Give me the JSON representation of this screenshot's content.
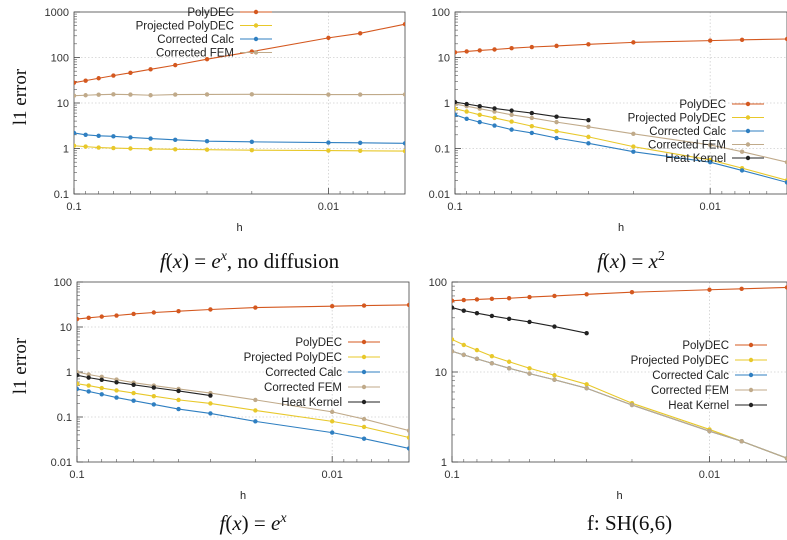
{
  "colors": {
    "PolyDEC": "#d4581f",
    "Projected PolyDEC": "#e8c82a",
    "Corrected Calc": "#2f7fc1",
    "Corrected FEM": "#c0aa8a",
    "Heat Kernel": "#222222"
  },
  "chart_data": [
    {
      "type": "line",
      "xscale": "log",
      "yscale": "log",
      "xreversed": true,
      "xlim": [
        0.1,
        0.005
      ],
      "ylim": [
        0.1,
        1000
      ],
      "x_ticks": [
        "0.1",
        "0.01"
      ],
      "y_ticks": [
        "0.1",
        "1",
        "10",
        "100",
        "1000"
      ],
      "xlabel": "h",
      "ylabel": "l1 error",
      "caption": "f(x) = e^x, no diffusion",
      "legend_position": "top-left",
      "grid": true,
      "series": [
        {
          "name": "PolyDEC",
          "x": [
            0.1,
            0.09,
            0.08,
            0.07,
            0.06,
            0.05,
            0.04,
            0.03,
            0.02,
            0.01,
            0.0075,
            0.005
          ],
          "y": [
            28,
            31,
            35,
            40,
            46,
            55,
            68,
            92,
            135,
            270,
            340,
            540
          ]
        },
        {
          "name": "Projected PolyDEC",
          "x": [
            0.1,
            0.09,
            0.08,
            0.07,
            0.06,
            0.05,
            0.04,
            0.03,
            0.02,
            0.01,
            0.0075,
            0.005
          ],
          "y": [
            1.15,
            1.1,
            1.05,
            1.02,
            1.0,
            0.98,
            0.96,
            0.94,
            0.92,
            0.9,
            0.89,
            0.88
          ]
        },
        {
          "name": "Corrected Calc",
          "x": [
            0.1,
            0.09,
            0.08,
            0.07,
            0.06,
            0.05,
            0.04,
            0.03,
            0.02,
            0.01,
            0.0075,
            0.005
          ],
          "y": [
            2.2,
            2.0,
            1.9,
            1.85,
            1.75,
            1.65,
            1.55,
            1.45,
            1.4,
            1.35,
            1.33,
            1.3
          ]
        },
        {
          "name": "Corrected FEM",
          "x": [
            0.1,
            0.09,
            0.08,
            0.07,
            0.06,
            0.05,
            0.04,
            0.03,
            0.02,
            0.01,
            0.0075,
            0.005
          ],
          "y": [
            14.5,
            14.8,
            15.2,
            15.5,
            15.3,
            14.8,
            15.3,
            15.4,
            15.5,
            15.3,
            15.3,
            15.4
          ]
        }
      ]
    },
    {
      "type": "line",
      "xscale": "log",
      "yscale": "log",
      "xreversed": true,
      "xlim": [
        0.1,
        0.005
      ],
      "ylim": [
        0.01,
        100
      ],
      "x_ticks": [
        "0.1",
        "0.01"
      ],
      "y_ticks": [
        "0.01",
        "0.1",
        "1",
        "10",
        "100"
      ],
      "xlabel": "h",
      "ylabel": "",
      "caption": "f(x) = x^2",
      "legend_position": "right",
      "grid": true,
      "series": [
        {
          "name": "PolyDEC",
          "x": [
            0.1,
            0.09,
            0.08,
            0.07,
            0.06,
            0.05,
            0.04,
            0.03,
            0.02,
            0.01,
            0.0075,
            0.005
          ],
          "y": [
            13,
            13.6,
            14.3,
            15,
            16,
            17,
            18,
            19.5,
            21.5,
            23.5,
            24.5,
            25.5
          ]
        },
        {
          "name": "Projected PolyDEC",
          "x": [
            0.1,
            0.09,
            0.08,
            0.07,
            0.06,
            0.05,
            0.04,
            0.03,
            0.02,
            0.01,
            0.0075,
            0.005
          ],
          "y": [
            0.75,
            0.65,
            0.55,
            0.47,
            0.39,
            0.31,
            0.24,
            0.18,
            0.11,
            0.056,
            0.037,
            0.02
          ]
        },
        {
          "name": "Corrected Calc",
          "x": [
            0.1,
            0.09,
            0.08,
            0.07,
            0.06,
            0.05,
            0.04,
            0.03,
            0.02,
            0.01,
            0.0075,
            0.005
          ],
          "y": [
            0.55,
            0.45,
            0.38,
            0.32,
            0.26,
            0.22,
            0.17,
            0.13,
            0.085,
            0.05,
            0.033,
            0.018
          ]
        },
        {
          "name": "Corrected FEM",
          "x": [
            0.1,
            0.09,
            0.08,
            0.07,
            0.06,
            0.05,
            0.04,
            0.03,
            0.02,
            0.01,
            0.0075,
            0.005
          ],
          "y": [
            0.95,
            0.85,
            0.75,
            0.65,
            0.55,
            0.47,
            0.38,
            0.3,
            0.21,
            0.12,
            0.085,
            0.05
          ]
        },
        {
          "name": "Heat Kernel",
          "x": [
            0.1,
            0.09,
            0.08,
            0.07,
            0.06,
            0.05,
            0.04,
            0.03
          ],
          "y": [
            1.05,
            0.95,
            0.85,
            0.76,
            0.68,
            0.6,
            0.5,
            0.42
          ]
        }
      ]
    },
    {
      "type": "line",
      "xscale": "log",
      "yscale": "log",
      "xreversed": true,
      "xlim": [
        0.1,
        0.005
      ],
      "ylim": [
        0.01,
        100
      ],
      "x_ticks": [
        "0.1",
        "0.01"
      ],
      "y_ticks": [
        "0.01",
        "0.1",
        "1",
        "10",
        "100"
      ],
      "xlabel": "h",
      "ylabel": "l1 error",
      "caption": "f(x) = e^x",
      "legend_position": "right",
      "grid": true,
      "series": [
        {
          "name": "PolyDEC",
          "x": [
            0.1,
            0.09,
            0.08,
            0.07,
            0.06,
            0.05,
            0.04,
            0.03,
            0.02,
            0.01,
            0.0075,
            0.005
          ],
          "y": [
            15,
            16,
            17,
            18,
            19.5,
            21,
            22.5,
            24.5,
            27,
            29,
            30,
            31
          ]
        },
        {
          "name": "Projected PolyDEC",
          "x": [
            0.1,
            0.09,
            0.08,
            0.07,
            0.06,
            0.05,
            0.04,
            0.03,
            0.02,
            0.01,
            0.0075,
            0.005
          ],
          "y": [
            0.55,
            0.5,
            0.44,
            0.39,
            0.34,
            0.29,
            0.24,
            0.2,
            0.14,
            0.08,
            0.06,
            0.035
          ]
        },
        {
          "name": "Corrected Calc",
          "x": [
            0.1,
            0.09,
            0.08,
            0.07,
            0.06,
            0.05,
            0.04,
            0.03,
            0.02,
            0.01,
            0.0075,
            0.005
          ],
          "y": [
            0.42,
            0.37,
            0.32,
            0.27,
            0.23,
            0.19,
            0.15,
            0.12,
            0.08,
            0.045,
            0.033,
            0.02
          ]
        },
        {
          "name": "Corrected FEM",
          "x": [
            0.1,
            0.09,
            0.08,
            0.07,
            0.06,
            0.05,
            0.04,
            0.03,
            0.02,
            0.01,
            0.0075,
            0.005
          ],
          "y": [
            1.0,
            0.88,
            0.78,
            0.68,
            0.58,
            0.5,
            0.42,
            0.34,
            0.24,
            0.13,
            0.09,
            0.05
          ]
        },
        {
          "name": "Heat Kernel",
          "x": [
            0.1,
            0.09,
            0.08,
            0.07,
            0.06,
            0.05,
            0.04,
            0.03
          ],
          "y": [
            0.85,
            0.75,
            0.67,
            0.59,
            0.52,
            0.45,
            0.38,
            0.3
          ]
        }
      ]
    },
    {
      "type": "line",
      "xscale": "log",
      "yscale": "log",
      "xreversed": true,
      "xlim": [
        0.1,
        0.005
      ],
      "ylim": [
        1,
        100
      ],
      "x_ticks": [
        "0.1",
        "0.01"
      ],
      "y_ticks": [
        "1",
        "10",
        "100"
      ],
      "xlabel": "h",
      "ylabel": "",
      "caption": "f: SH(6,6)",
      "legend_position": "right",
      "grid": true,
      "series": [
        {
          "name": "PolyDEC",
          "x": [
            0.1,
            0.09,
            0.08,
            0.07,
            0.06,
            0.05,
            0.04,
            0.03,
            0.02,
            0.01,
            0.0075,
            0.005
          ],
          "y": [
            62,
            63,
            64,
            65,
            66,
            68,
            70,
            73,
            77,
            82,
            84,
            87
          ]
        },
        {
          "name": "Projected PolyDEC",
          "x": [
            0.1,
            0.09,
            0.08,
            0.07,
            0.06,
            0.05,
            0.04,
            0.03,
            0.02,
            0.01,
            0.0075,
            0.005
          ],
          "y": [
            23,
            20,
            17.5,
            15,
            13,
            11,
            9.2,
            7.3,
            4.5,
            2.3,
            1.7,
            1.1
          ]
        },
        {
          "name": "Corrected Calc",
          "x": [
            0.1,
            0.09,
            0.08,
            0.07,
            0.06,
            0.05,
            0.04,
            0.03,
            0.02,
            0.01,
            0.0075,
            0.005
          ],
          "y": [
            17,
            15.5,
            14,
            12.5,
            11,
            9.6,
            8.2,
            6.6,
            4.3,
            2.2,
            1.7,
            1.1
          ]
        },
        {
          "name": "Corrected FEM",
          "x": [
            0.1,
            0.09,
            0.08,
            0.07,
            0.06,
            0.05,
            0.04,
            0.03,
            0.02,
            0.01,
            0.0075,
            0.005
          ],
          "y": [
            17,
            15.5,
            14,
            12.5,
            11,
            9.6,
            8.2,
            6.6,
            4.3,
            2.2,
            1.7,
            1.1
          ]
        },
        {
          "name": "Heat Kernel",
          "x": [
            0.1,
            0.09,
            0.08,
            0.07,
            0.06,
            0.05,
            0.04,
            0.03
          ],
          "y": [
            52,
            48,
            45,
            42,
            39,
            36,
            32,
            27
          ]
        }
      ]
    }
  ]
}
